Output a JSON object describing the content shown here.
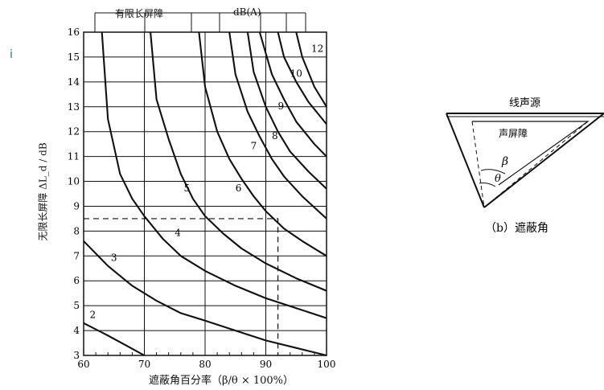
{
  "stray_text": "i",
  "left_chart": {
    "top_label_left": "有限长屏障",
    "top_label_right": "dB(A)",
    "ylabel": "无限长屏障 ΔL_d / dB",
    "xlabel": "遮蔽角百分率（β/θ × 100%）"
  },
  "chart_data": [
    {
      "type": "line",
      "title": "",
      "xlabel": "遮蔽角百分率（β/θ × 100%）",
      "ylabel": "无限长屏障 ΔL_d / dB",
      "top_axis_label": "有限长屏障 dB(A)",
      "xlim": [
        60,
        100
      ],
      "ylim": [
        3,
        16
      ],
      "x_ticks": [
        60,
        70,
        80,
        90,
        100
      ],
      "y_ticks": [
        3,
        4,
        5,
        6,
        7,
        8,
        9,
        10,
        11,
        12,
        13,
        14,
        15,
        16
      ],
      "grid": true,
      "reference_point": {
        "x": 92,
        "y": 8.5
      },
      "series": [
        {
          "name": "2",
          "points": [
            [
              60,
              4.3
            ],
            [
              64,
              3.8
            ],
            [
              67,
              3.4
            ],
            [
              70,
              3.0
            ]
          ]
        },
        {
          "name": "3",
          "points": [
            [
              60,
              7.6
            ],
            [
              64,
              6.6
            ],
            [
              68,
              5.8
            ],
            [
              72,
              5.2
            ],
            [
              76,
              4.7
            ],
            [
              80,
              4.4
            ],
            [
              85,
              4.0
            ],
            [
              90,
              3.6
            ],
            [
              95,
              3.3
            ],
            [
              100,
              3.0
            ]
          ]
        },
        {
          "name": "4",
          "points": [
            [
              63,
              16
            ],
            [
              64,
              12.5
            ],
            [
              66,
              10.3
            ],
            [
              68,
              9.3
            ],
            [
              70,
              8.6
            ],
            [
              73,
              7.7
            ],
            [
              76,
              7.0
            ],
            [
              80,
              6.4
            ],
            [
              85,
              5.8
            ],
            [
              90,
              5.3
            ],
            [
              95,
              4.9
            ],
            [
              100,
              4.5
            ]
          ]
        },
        {
          "name": "5",
          "points": [
            [
              71,
              16
            ],
            [
              72,
              13.3
            ],
            [
              74,
              11.7
            ],
            [
              76,
              10.3
            ],
            [
              78,
              9.3
            ],
            [
              80,
              8.6
            ],
            [
              83,
              7.9
            ],
            [
              86,
              7.3
            ],
            [
              90,
              6.7
            ],
            [
              95,
              6.1
            ],
            [
              100,
              5.6
            ]
          ]
        },
        {
          "name": "6",
          "points": [
            [
              79,
              16
            ],
            [
              80,
              13.8
            ],
            [
              82,
              12.0
            ],
            [
              84,
              10.9
            ],
            [
              86,
              10.1
            ],
            [
              88,
              9.4
            ],
            [
              90,
              8.8
            ],
            [
              93,
              8.1
            ],
            [
              96,
              7.6
            ],
            [
              100,
              7.0
            ]
          ]
        },
        {
          "name": "7",
          "points": [
            [
              84,
              16
            ],
            [
              85,
              14.3
            ],
            [
              87,
              12.8
            ],
            [
              89,
              11.8
            ],
            [
              91,
              10.9
            ],
            [
              93,
              10.2
            ],
            [
              96,
              9.4
            ],
            [
              100,
              8.5
            ]
          ]
        },
        {
          "name": "8",
          "points": [
            [
              87,
              16
            ],
            [
              88,
              14.4
            ],
            [
              90,
              13.0
            ],
            [
              92,
              12.0
            ],
            [
              94,
              11.2
            ],
            [
              97,
              10.4
            ],
            [
              100,
              9.7
            ]
          ]
        },
        {
          "name": "9",
          "points": [
            [
              89,
              16
            ],
            [
              91,
              14.3
            ],
            [
              93,
              13.3
            ],
            [
              95,
              12.4
            ],
            [
              98,
              11.5
            ],
            [
              100,
              11.0
            ]
          ]
        },
        {
          "name": "10",
          "points": [
            [
              92,
              16
            ],
            [
              93,
              15.0
            ],
            [
              95,
              14.0
            ],
            [
              97,
              13.2
            ],
            [
              100,
              12.3
            ]
          ]
        },
        {
          "name": "12",
          "points": [
            [
              95,
              16
            ],
            [
              96,
              15.0
            ],
            [
              98,
              13.8
            ],
            [
              100,
              13.0
            ]
          ]
        }
      ],
      "curve_labels": [
        {
          "text": "2",
          "x": 61.5,
          "y": 4.5
        },
        {
          "text": "3",
          "x": 65.0,
          "y": 6.8
        },
        {
          "text": "4",
          "x": 75.5,
          "y": 7.8
        },
        {
          "text": "5",
          "x": 77.0,
          "y": 9.6
        },
        {
          "text": "6",
          "x": 85.5,
          "y": 9.6
        },
        {
          "text": "7",
          "x": 88.0,
          "y": 11.3
        },
        {
          "text": "8",
          "x": 91.5,
          "y": 11.7
        },
        {
          "text": "9",
          "x": 92.5,
          "y": 12.9
        },
        {
          "text": "10",
          "x": 95.0,
          "y": 14.2
        },
        {
          "text": "12",
          "x": 98.5,
          "y": 15.2
        }
      ]
    },
    {
      "type": "diagram",
      "title": "(b) 遮蔽角",
      "labels": [
        "线声源",
        "声屏障",
        "β",
        "θ"
      ]
    }
  ],
  "right_diagram": {
    "line_source": "线声源",
    "barrier": "声屏障",
    "beta": "β",
    "theta": "θ",
    "caption": "（b）遮蔽角"
  }
}
